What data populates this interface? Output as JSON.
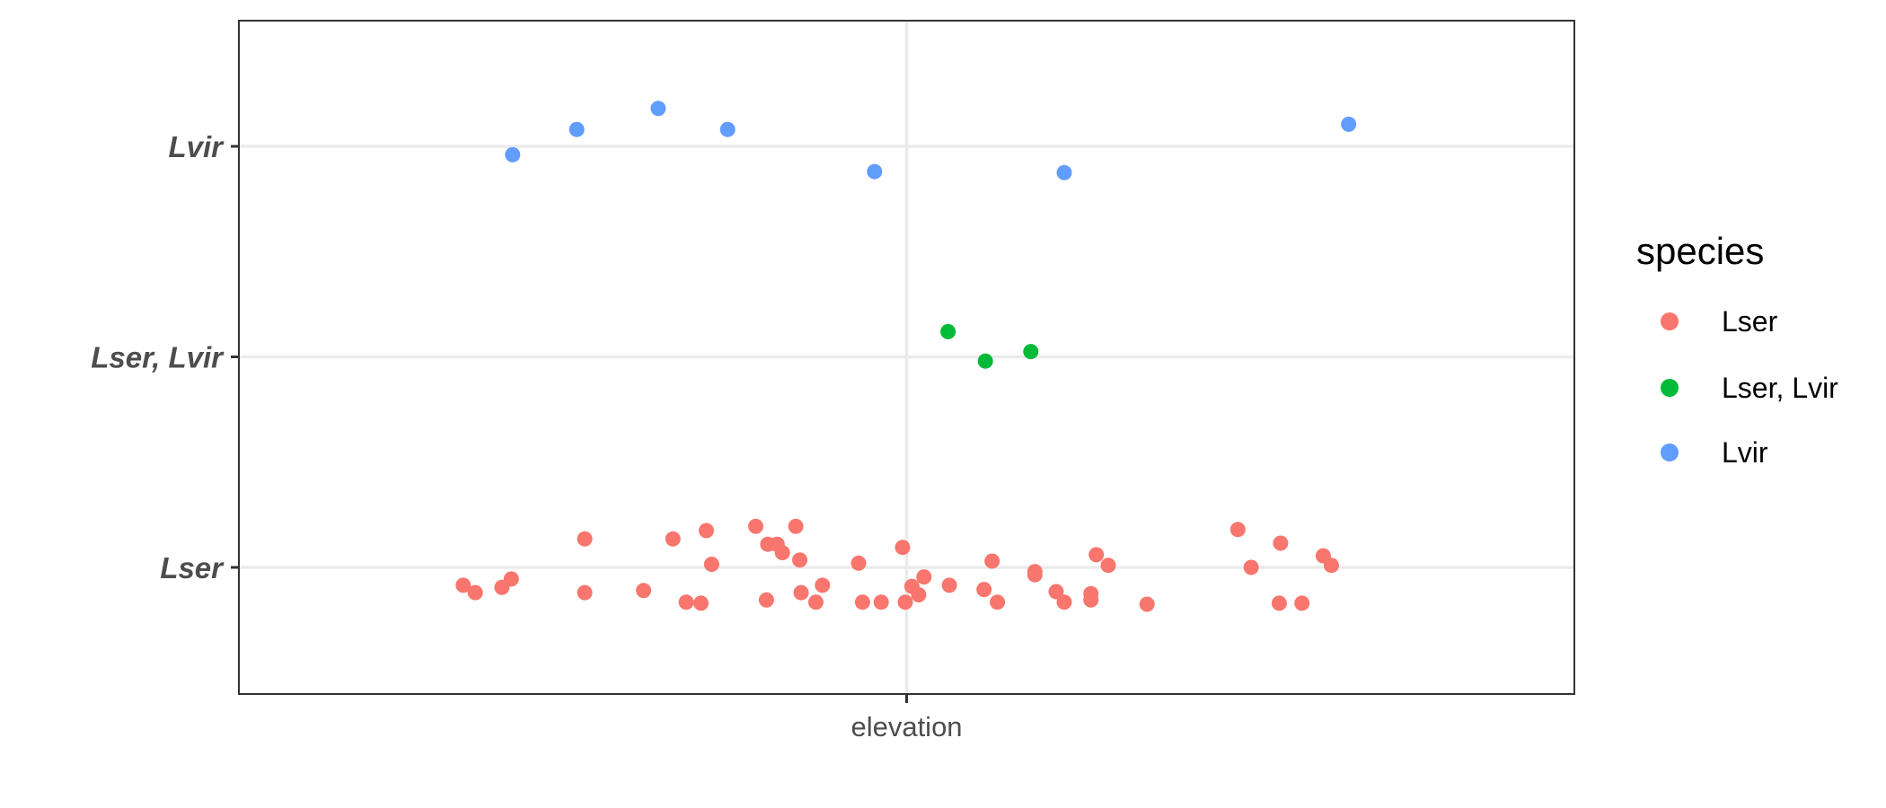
{
  "chart_data": {
    "type": "scatter",
    "jitter": true,
    "title": "",
    "xlabel": "",
    "ylabel": "",
    "x_tick_labels": [
      "elevation"
    ],
    "y_categories": [
      "Lser",
      "Lser, Lvir",
      "Lvir"
    ],
    "grid": true,
    "legend": {
      "title": "species",
      "placement": "right",
      "entries": [
        {
          "label": "Lser",
          "color": "#F8766D"
        },
        {
          "label": "Lser, Lvir",
          "color": "#00BA38"
        },
        {
          "label": "Lvir",
          "color": "#619CFF"
        }
      ]
    },
    "x_jitter_range": [
      -0.5,
      0.5
    ],
    "y_jitter_range": [
      -0.5,
      0.5
    ],
    "series": [
      {
        "name": "Lvir",
        "category": "Lvir",
        "color": "#619CFF",
        "points": [
          [
            -0.295,
            -0.04
          ],
          [
            -0.247,
            0.08
          ],
          [
            -0.186,
            0.18
          ],
          [
            -0.134,
            0.08
          ],
          [
            -0.024,
            -0.12
          ],
          [
            0.118,
            -0.125
          ],
          [
            0.331,
            0.105
          ]
        ]
      },
      {
        "name": "Lser, Lvir",
        "category": "Lser, Lvir",
        "color": "#00BA38",
        "points": [
          [
            0.031,
            0.12
          ],
          [
            0.059,
            -0.02
          ],
          [
            0.093,
            0.025
          ]
        ]
      },
      {
        "name": "Lser",
        "category": "Lser",
        "color": "#F8766D",
        "points": [
          [
            -0.332,
            -0.085
          ],
          [
            -0.323,
            -0.12
          ],
          [
            -0.303,
            -0.095
          ],
          [
            -0.296,
            -0.055
          ],
          [
            -0.241,
            0.135
          ],
          [
            -0.241,
            -0.12
          ],
          [
            -0.197,
            -0.11
          ],
          [
            -0.175,
            0.135
          ],
          [
            -0.165,
            -0.165
          ],
          [
            -0.154,
            -0.17
          ],
          [
            -0.15,
            0.175
          ],
          [
            -0.146,
            0.015
          ],
          [
            -0.113,
            0.195
          ],
          [
            -0.105,
            -0.155
          ],
          [
            -0.104,
            0.11
          ],
          [
            -0.097,
            0.11
          ],
          [
            -0.093,
            0.07
          ],
          [
            -0.083,
            0.195
          ],
          [
            -0.08,
            0.035
          ],
          [
            -0.079,
            -0.12
          ],
          [
            -0.068,
            -0.165
          ],
          [
            -0.063,
            -0.085
          ],
          [
            -0.036,
            0.02
          ],
          [
            -0.033,
            -0.165
          ],
          [
            -0.019,
            -0.165
          ],
          [
            -0.003,
            0.095
          ],
          [
            -0.001,
            -0.165
          ],
          [
            0.004,
            -0.09
          ],
          [
            0.009,
            -0.13
          ],
          [
            0.013,
            -0.045
          ],
          [
            0.032,
            -0.085
          ],
          [
            0.058,
            -0.105
          ],
          [
            0.064,
            0.03
          ],
          [
            0.068,
            -0.165
          ],
          [
            0.096,
            -0.02
          ],
          [
            0.096,
            -0.035
          ],
          [
            0.112,
            -0.115
          ],
          [
            0.118,
            -0.165
          ],
          [
            0.138,
            -0.125
          ],
          [
            0.138,
            -0.155
          ],
          [
            0.142,
            0.06
          ],
          [
            0.151,
            0.01
          ],
          [
            0.18,
            -0.175
          ],
          [
            0.248,
            0.18
          ],
          [
            0.258,
            0.0
          ],
          [
            0.28,
            0.115
          ],
          [
            0.279,
            -0.17
          ],
          [
            0.296,
            -0.17
          ],
          [
            0.312,
            0.055
          ],
          [
            0.318,
            0.01
          ]
        ]
      }
    ]
  }
}
